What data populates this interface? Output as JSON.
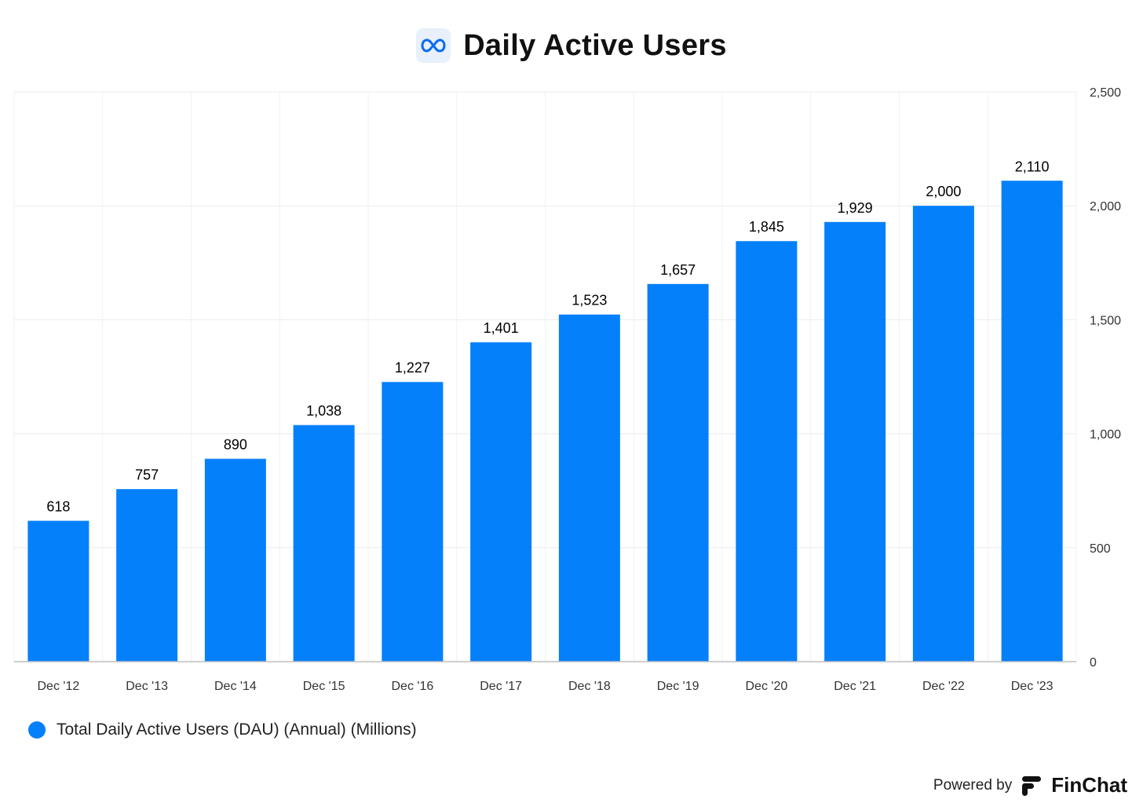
{
  "header": {
    "title": "Daily Active Users",
    "logo_icon": "meta-infinity-icon"
  },
  "chart_data": {
    "type": "bar",
    "categories": [
      "Dec '12",
      "Dec '13",
      "Dec '14",
      "Dec '15",
      "Dec '16",
      "Dec '17",
      "Dec '18",
      "Dec '19",
      "Dec '20",
      "Dec '21",
      "Dec '22",
      "Dec '23"
    ],
    "series": [
      {
        "name": "Total Daily Active Users (DAU) (Annual) (Millions)",
        "values": [
          618,
          757,
          890,
          1038,
          1227,
          1401,
          1523,
          1657,
          1845,
          1929,
          2000,
          2110
        ],
        "labels": [
          "618",
          "757",
          "890",
          "1,038",
          "1,227",
          "1,401",
          "1,523",
          "1,657",
          "1,845",
          "1,929",
          "2,000",
          "2,110"
        ],
        "color": "#0580fb"
      }
    ],
    "y_ticks": [
      0,
      500,
      1000,
      1500,
      2000,
      2500
    ],
    "y_tick_labels": [
      "0",
      "500",
      "1,000",
      "1,500",
      "2,000",
      "2,500"
    ],
    "ylim": [
      0,
      2500
    ],
    "y_axis_side": "right",
    "grid": true,
    "legend_position": "bottom-left"
  },
  "legend": {
    "label": "Total Daily Active Users (DAU) (Annual) (Millions)",
    "color": "#0580fb"
  },
  "footer": {
    "powered_by": "Powered by",
    "brand": "FinChat",
    "brand_icon": "finchat-logo-icon"
  }
}
